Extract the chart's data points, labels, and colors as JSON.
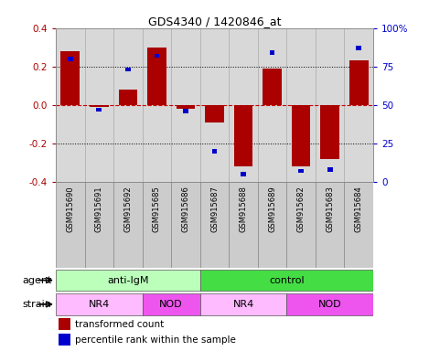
{
  "title": "GDS4340 / 1420846_at",
  "samples": [
    "GSM915690",
    "GSM915691",
    "GSM915692",
    "GSM915685",
    "GSM915686",
    "GSM915687",
    "GSM915688",
    "GSM915689",
    "GSM915682",
    "GSM915683",
    "GSM915684"
  ],
  "bar_values": [
    0.28,
    -0.01,
    0.08,
    0.3,
    -0.02,
    -0.09,
    -0.32,
    0.19,
    -0.32,
    -0.28,
    0.23
  ],
  "percentile_values": [
    80,
    47,
    73,
    82,
    46,
    20,
    5,
    84,
    7,
    8,
    87
  ],
  "bar_color": "#aa0000",
  "percentile_color": "#0000cc",
  "ylim": [
    -0.4,
    0.4
  ],
  "y2lim": [
    0,
    100
  ],
  "yticks": [
    -0.4,
    -0.2,
    0.0,
    0.2,
    0.4
  ],
  "y2ticks": [
    0,
    25,
    50,
    75,
    100
  ],
  "y2ticklabels": [
    "0",
    "25",
    "50",
    "75",
    "100%"
  ],
  "hlines_dotted": [
    -0.2,
    0.2
  ],
  "zero_line_color": "#cc0000",
  "dotted_line_color": "#000000",
  "agent_groups": [
    {
      "label": "anti-IgM",
      "start": 0,
      "end": 5,
      "color": "#bbffbb"
    },
    {
      "label": "control",
      "start": 5,
      "end": 11,
      "color": "#44dd44"
    }
  ],
  "strain_groups": [
    {
      "label": "NR4",
      "start": 0,
      "end": 3,
      "color": "#ffbbff"
    },
    {
      "label": "NOD",
      "start": 3,
      "end": 5,
      "color": "#ee55ee"
    },
    {
      "label": "NR4",
      "start": 5,
      "end": 8,
      "color": "#ffbbff"
    },
    {
      "label": "NOD",
      "start": 8,
      "end": 11,
      "color": "#ee55ee"
    }
  ],
  "agent_label": "agent",
  "strain_label": "strain",
  "legend_bar_label": "transformed count",
  "legend_pct_label": "percentile rank within the sample",
  "bar_width": 0.65,
  "plot_bg": "#d8d8d8",
  "xlabels_bg": "#cccccc"
}
